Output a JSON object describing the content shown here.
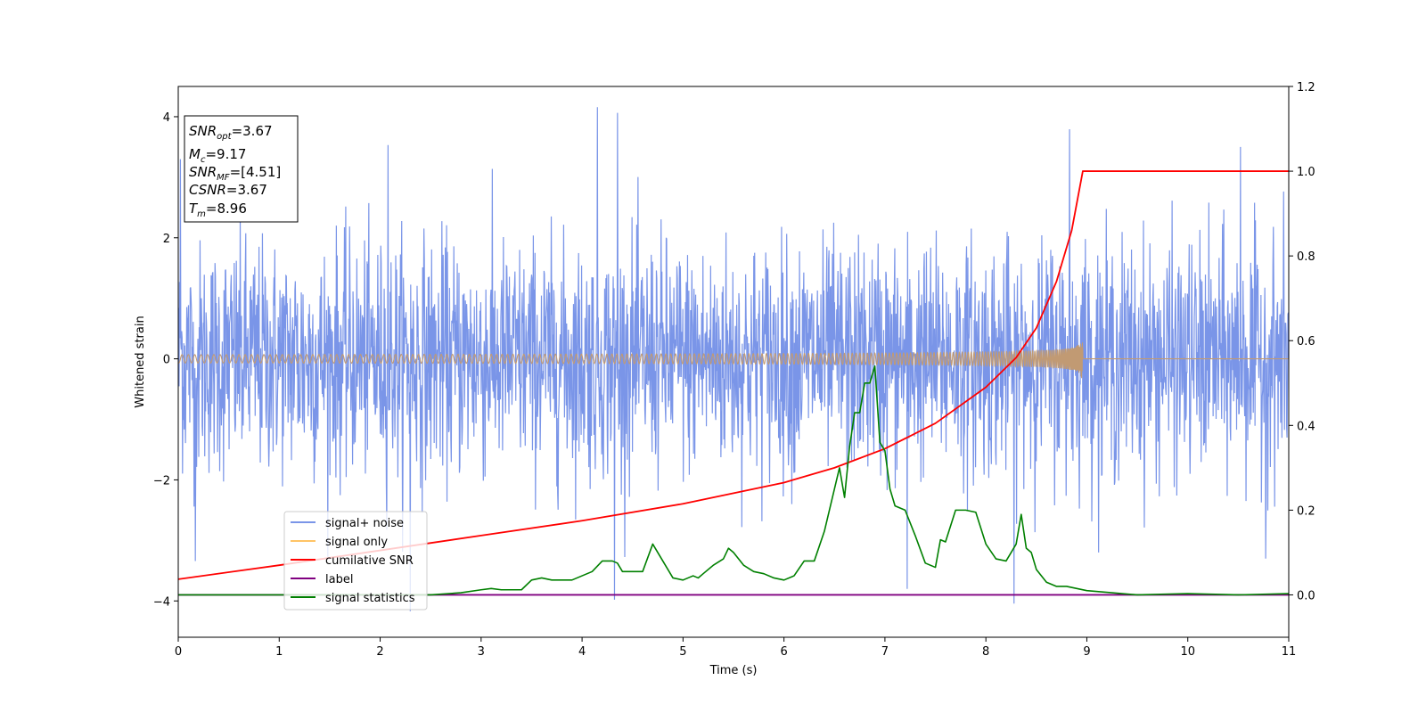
{
  "chart_data": {
    "type": "line",
    "xlabel": "Time (s)",
    "ylabel": "Whitened strain",
    "xlim": [
      0,
      11
    ],
    "ylim_left": [
      -4.6,
      4.5
    ],
    "ylim_right": [
      -0.1,
      1.2
    ],
    "x_ticks": [
      "0",
      "1",
      "2",
      "3",
      "4",
      "5",
      "6",
      "7",
      "8",
      "9",
      "10",
      "11"
    ],
    "y_left_ticks": [
      "4",
      "2",
      "0",
      "−2",
      "−4"
    ],
    "y_right_ticks": [
      "1.2",
      "1.0",
      "0.8",
      "0.6",
      "0.4",
      "0.2",
      "0.0"
    ],
    "grid": false,
    "legend_position": "lower-left",
    "colors": {
      "signal_noise": "#7a95e8",
      "signal_only": "#ffc466",
      "signal_only_visible": "#c19a73",
      "cumulative_snr": "#ff0000",
      "label": "#800080",
      "signal_statistics": "#008000"
    },
    "info_box": {
      "snr_opt": {
        "base": "SNR",
        "sub": "opt",
        "value": "=3.67"
      },
      "mc": {
        "base": "M",
        "sub": "c",
        "value": "=9.17"
      },
      "snr_mf": {
        "base": "SNR",
        "sub": "MF",
        "value": "=[4.51]"
      },
      "csnr": {
        "base": "CSNR",
        "value": "=3.67"
      },
      "tm": {
        "base": "T",
        "sub": "m",
        "value": "=8.96"
      }
    },
    "series": [
      {
        "name": "signal+ noise",
        "axis": "left",
        "description_kind": "noise",
        "noise_std": 0.95,
        "sample_count": 2600,
        "peaks": [
          [
            0.02,
            3.3
          ],
          [
            0.17,
            -3.4
          ],
          [
            2.08,
            3.55
          ],
          [
            2.3,
            -4.1
          ],
          [
            4.15,
            4.1
          ],
          [
            4.35,
            4.0
          ],
          [
            4.32,
            -3.9
          ],
          [
            8.83,
            3.65
          ],
          [
            8.28,
            -4.15
          ],
          [
            10.52,
            3.5
          ],
          [
            7.22,
            -3.9
          ],
          [
            10.77,
            -3.3
          ]
        ]
      },
      {
        "name": "signal only",
        "axis": "left",
        "description_kind": "chirp",
        "t_merge": 8.96,
        "peak_amplitude": 0.45
      },
      {
        "name": "cumilative SNR",
        "axis": "right",
        "x": [
          0,
          1,
          2,
          3,
          4,
          5,
          5.5,
          6,
          6.5,
          7,
          7.5,
          8,
          8.3,
          8.5,
          8.7,
          8.85,
          8.96,
          9,
          11
        ],
        "y": [
          0.037,
          0.07,
          0.105,
          0.14,
          0.175,
          0.215,
          0.24,
          0.265,
          0.3,
          0.345,
          0.405,
          0.49,
          0.56,
          0.63,
          0.74,
          0.86,
          1.0,
          1.0,
          1.0
        ]
      },
      {
        "name": "label",
        "axis": "right",
        "x": [
          0,
          11
        ],
        "y": [
          0.0,
          0.0
        ]
      },
      {
        "name": "signal statistics",
        "axis": "right",
        "x": [
          0,
          0.5,
          1,
          1.5,
          2,
          2.5,
          2.8,
          3,
          3.1,
          3.2,
          3.4,
          3.5,
          3.6,
          3.7,
          3.9,
          4.1,
          4.2,
          4.3,
          4.35,
          4.4,
          4.5,
          4.6,
          4.7,
          4.8,
          4.9,
          5,
          5.1,
          5.15,
          5.2,
          5.3,
          5.4,
          5.45,
          5.5,
          5.6,
          5.7,
          5.8,
          5.9,
          6,
          6.1,
          6.2,
          6.3,
          6.4,
          6.5,
          6.55,
          6.6,
          6.65,
          6.7,
          6.75,
          6.8,
          6.85,
          6.9,
          6.95,
          7,
          7.05,
          7.1,
          7.2,
          7.3,
          7.4,
          7.5,
          7.55,
          7.6,
          7.7,
          7.8,
          7.9,
          8,
          8.1,
          8.2,
          8.3,
          8.35,
          8.4,
          8.45,
          8.5,
          8.6,
          8.7,
          8.8,
          9,
          9.5,
          10,
          10.5,
          11
        ],
        "y": [
          0.0,
          0.0,
          0.0,
          0.0,
          0.0,
          0.0,
          0.005,
          0.012,
          0.015,
          0.012,
          0.012,
          0.035,
          0.04,
          0.035,
          0.035,
          0.055,
          0.08,
          0.08,
          0.075,
          0.055,
          0.055,
          0.055,
          0.12,
          0.08,
          0.04,
          0.035,
          0.045,
          0.04,
          0.05,
          0.07,
          0.085,
          0.11,
          0.1,
          0.07,
          0.055,
          0.05,
          0.04,
          0.035,
          0.045,
          0.08,
          0.08,
          0.15,
          0.25,
          0.3,
          0.23,
          0.35,
          0.43,
          0.43,
          0.5,
          0.5,
          0.54,
          0.36,
          0.34,
          0.25,
          0.21,
          0.2,
          0.14,
          0.075,
          0.065,
          0.13,
          0.125,
          0.2,
          0.2,
          0.195,
          0.12,
          0.085,
          0.08,
          0.12,
          0.19,
          0.11,
          0.1,
          0.06,
          0.03,
          0.02,
          0.02,
          0.01,
          0.0,
          0.003,
          0.0,
          0.003
        ]
      }
    ]
  }
}
